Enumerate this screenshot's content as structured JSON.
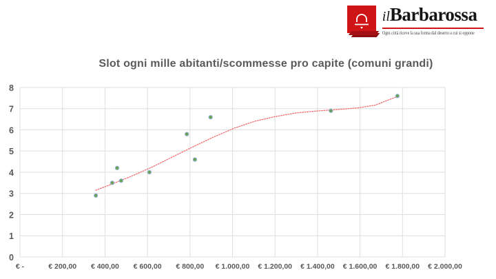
{
  "header": {
    "logo": {
      "name_prefix": "il",
      "name_main": "Barbarossa",
      "tagline": "Ogni città riceve la sua forma dal deserto a cui si oppone",
      "brand_red": "#ce1417"
    }
  },
  "chart_data": {
    "type": "scatter",
    "title": "Slot ogni mille abitanti/scommesse pro capite (comuni grandi)",
    "xlabel": "",
    "ylabel": "",
    "xlim": [
      0,
      2000
    ],
    "ylim": [
      0,
      8
    ],
    "grid": true,
    "x_tick_values": [
      0,
      200,
      400,
      600,
      800,
      1000,
      1200,
      1400,
      1600,
      1800,
      2000
    ],
    "x_tick_labels": [
      "€ -",
      "€ 200,00",
      "€ 400,00",
      "€ 600,00",
      "€ 800,00",
      "€ 1.000,00",
      "€ 1.200,00",
      "€ 1.400,00",
      "€ 1.600,00",
      "€ 1.800,00",
      "€ 2.000,00"
    ],
    "y_tick_values": [
      0,
      1,
      2,
      3,
      4,
      5,
      6,
      7,
      8
    ],
    "y_tick_labels": [
      "0",
      "1",
      "2",
      "3",
      "4",
      "5",
      "6",
      "7",
      "8"
    ],
    "series": [
      {
        "name": "comuni grandi",
        "points": [
          [
            357,
            2.9
          ],
          [
            434,
            3.5
          ],
          [
            457,
            4.2
          ],
          [
            476,
            3.6
          ],
          [
            609,
            4.0
          ],
          [
            785,
            5.8
          ],
          [
            823,
            4.6
          ],
          [
            897,
            6.6
          ],
          [
            1463,
            6.9
          ],
          [
            1776,
            7.6
          ]
        ]
      }
    ],
    "point_fill": "#6ca24e",
    "point_edge": "#92b1d8",
    "grid_color": "#dedede",
    "axis_label_color": "#595959",
    "trendline": {
      "style": "dotted",
      "color": "#f26d6d",
      "samples": [
        [
          357,
          3.15
        ],
        [
          425,
          3.41
        ],
        [
          522,
          3.8
        ],
        [
          619,
          4.23
        ],
        [
          717,
          4.72
        ],
        [
          814,
          5.2
        ],
        [
          911,
          5.66
        ],
        [
          1009,
          6.08
        ],
        [
          1106,
          6.41
        ],
        [
          1203,
          6.63
        ],
        [
          1300,
          6.8
        ],
        [
          1398,
          6.89
        ],
        [
          1495,
          6.96
        ],
        [
          1592,
          7.04
        ],
        [
          1673,
          7.17
        ],
        [
          1777,
          7.58
        ]
      ]
    }
  }
}
